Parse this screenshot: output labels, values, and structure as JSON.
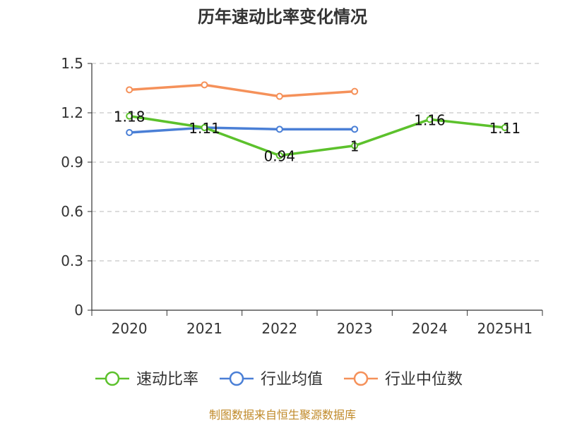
{
  "chart_data": {
    "type": "line",
    "title": "历年速动比率变化情况",
    "categories": [
      "2020",
      "2021",
      "2022",
      "2023",
      "2024",
      "2025H1"
    ],
    "ylim": [
      0,
      1.5
    ],
    "yticks": [
      "0",
      "0.3",
      "0.6",
      "0.9",
      "1.2",
      "1.5"
    ],
    "grid": true,
    "legend_position": "bottom",
    "series": [
      {
        "name": "速动比率",
        "color": "#5cc12c",
        "values": [
          1.18,
          1.11,
          0.94,
          1.0,
          1.16,
          1.11
        ],
        "labels": [
          "1.18",
          "1.11",
          "0.94",
          "1",
          "1.16",
          "1.11"
        ]
      },
      {
        "name": "行业均值",
        "color": "#4a7fd6",
        "values": [
          1.08,
          1.11,
          1.1,
          1.1,
          null,
          null
        ]
      },
      {
        "name": "行业中位数",
        "color": "#f5915a",
        "values": [
          1.34,
          1.37,
          1.3,
          1.33,
          null,
          null
        ]
      }
    ],
    "source": "制图数据来自恒生聚源数据库"
  }
}
